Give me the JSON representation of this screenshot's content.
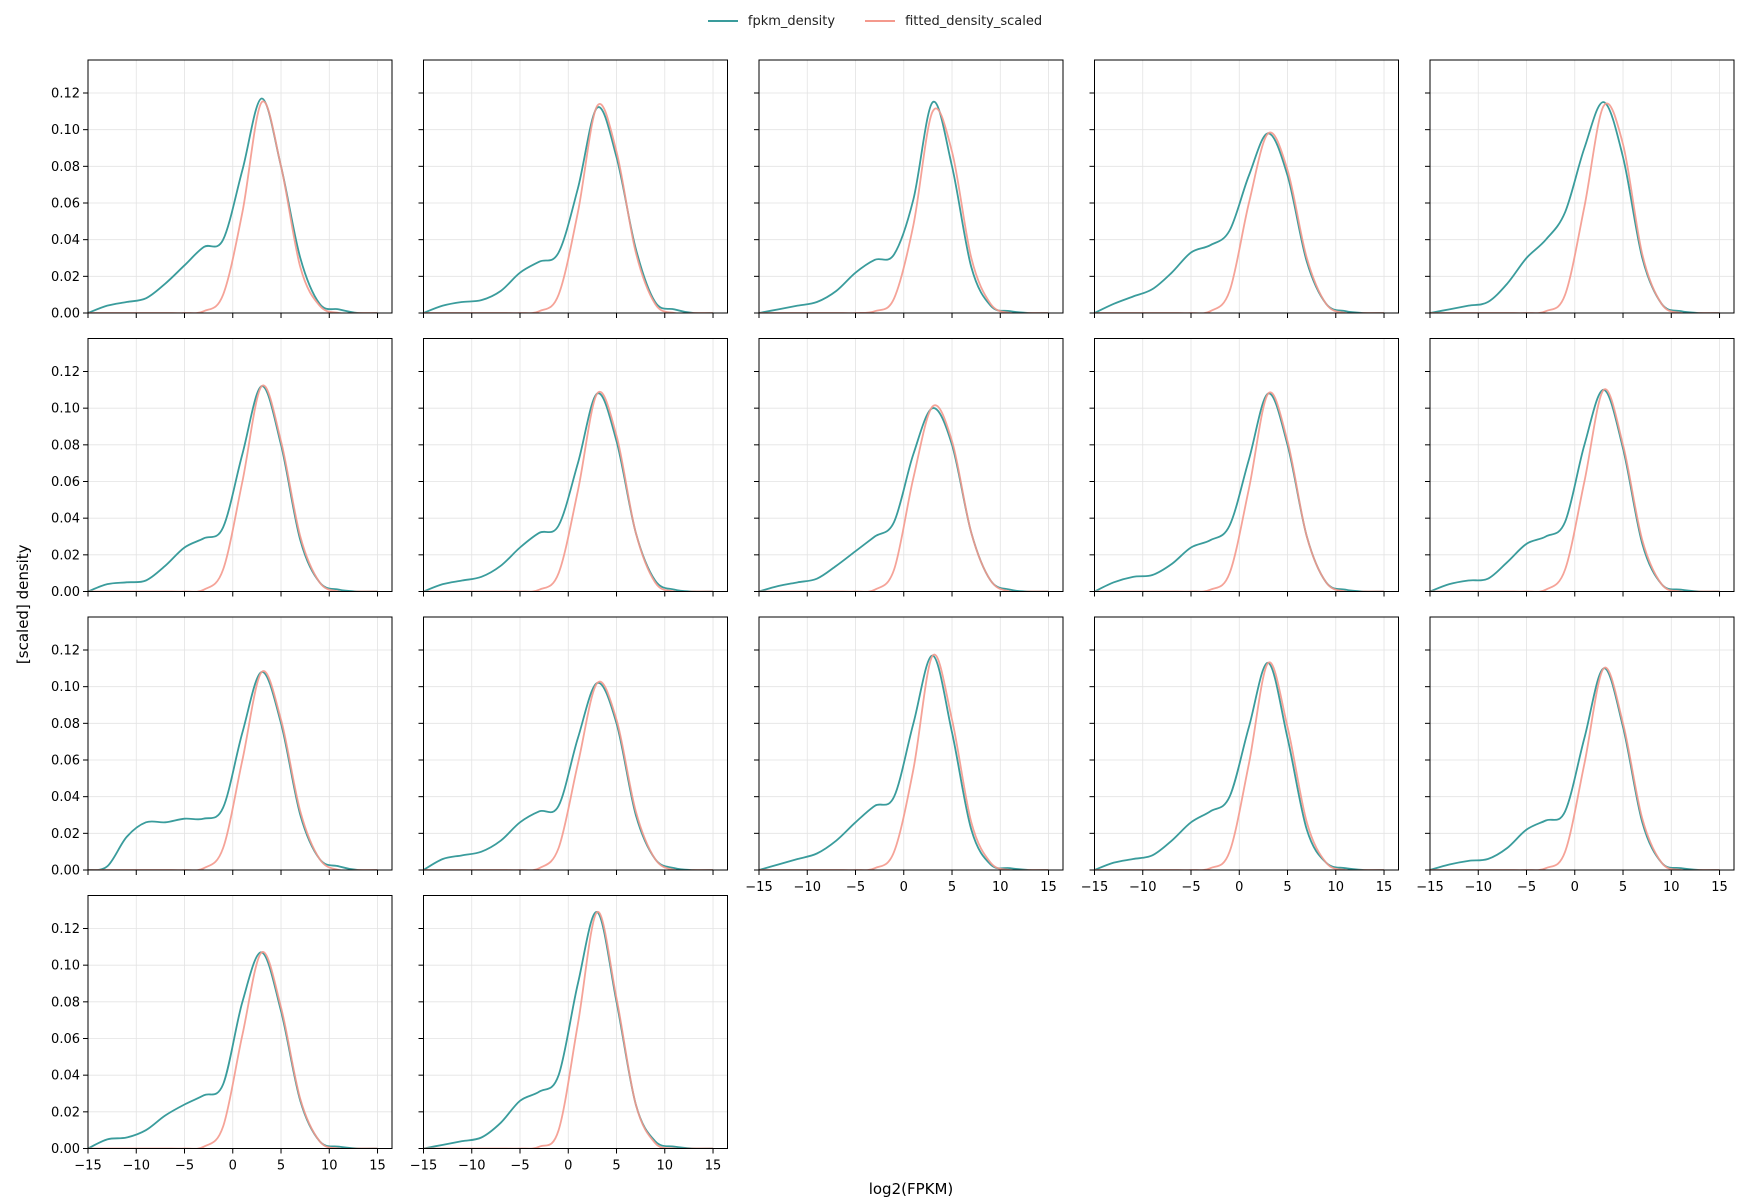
{
  "legend": {
    "series_a": "fpkm_density",
    "series_b": "fitted_density_scaled"
  },
  "colors": {
    "fpkm_density": "#3a9c9c",
    "fitted_density_scaled": "#f4998d",
    "grid": "#e3e3e3",
    "axis": "#000000"
  },
  "chart_data": {
    "type": "line",
    "layout": "small-multiples grid, 4 rows x 5 columns, 17 panels, shared axes",
    "xlabel": "log2(FPKM)",
    "ylabel": "[scaled] density",
    "xlim": [
      -15,
      16.5
    ],
    "ylim": [
      0,
      0.138
    ],
    "xticks": [
      -15,
      -10,
      -5,
      0,
      5,
      10,
      15
    ],
    "yticks": [
      0.0,
      0.02,
      0.04,
      0.06,
      0.08,
      0.1,
      0.12
    ],
    "xtick_labels": [
      "−15",
      "−10",
      "−5",
      "0",
      "5",
      "10",
      "15"
    ],
    "ytick_labels": [
      "0.00",
      "0.02",
      "0.04",
      "0.06",
      "0.08",
      "0.10",
      "0.12"
    ],
    "grid": true,
    "legend_position": "top-center",
    "x_curve_grid": [
      -15,
      -13,
      -11,
      -9,
      -7,
      -5,
      -3,
      -1,
      1,
      3,
      5,
      7,
      9,
      11,
      13,
      15
    ],
    "panels": [
      {
        "fpkm": [
          0.0,
          0.004,
          0.006,
          0.008,
          0.016,
          0.026,
          0.036,
          0.04,
          0.078,
          0.117,
          0.08,
          0.03,
          0.005,
          0.002,
          0.0,
          0.0
        ],
        "fitted": [
          0.0,
          0.0,
          0.0,
          0.0,
          0.0,
          0.0,
          0.001,
          0.01,
          0.055,
          0.115,
          0.08,
          0.025,
          0.004,
          0.0,
          0.0,
          0.0
        ]
      },
      {
        "fpkm": [
          0.0,
          0.004,
          0.006,
          0.007,
          0.012,
          0.022,
          0.028,
          0.033,
          0.068,
          0.112,
          0.085,
          0.035,
          0.006,
          0.002,
          0.0,
          0.0
        ],
        "fitted": [
          0.0,
          0.0,
          0.0,
          0.0,
          0.0,
          0.0,
          0.001,
          0.01,
          0.055,
          0.113,
          0.088,
          0.033,
          0.005,
          0.0,
          0.0,
          0.0
        ]
      },
      {
        "fpkm": [
          0.0,
          0.002,
          0.004,
          0.006,
          0.012,
          0.022,
          0.029,
          0.032,
          0.062,
          0.115,
          0.08,
          0.025,
          0.004,
          0.001,
          0.0,
          0.0
        ],
        "fitted": [
          0.0,
          0.0,
          0.0,
          0.0,
          0.0,
          0.0,
          0.001,
          0.008,
          0.048,
          0.11,
          0.088,
          0.03,
          0.005,
          0.0,
          0.0,
          0.0
        ]
      },
      {
        "fpkm": [
          0.0,
          0.005,
          0.009,
          0.013,
          0.022,
          0.033,
          0.037,
          0.045,
          0.075,
          0.098,
          0.075,
          0.028,
          0.005,
          0.001,
          0.0,
          0.0
        ],
        "fitted": [
          0.0,
          0.0,
          0.0,
          0.0,
          0.0,
          0.0,
          0.001,
          0.012,
          0.06,
          0.098,
          0.078,
          0.03,
          0.005,
          0.0,
          0.0,
          0.0
        ]
      },
      {
        "fpkm": [
          0.0,
          0.002,
          0.004,
          0.006,
          0.016,
          0.03,
          0.04,
          0.055,
          0.09,
          0.115,
          0.085,
          0.03,
          0.005,
          0.001,
          0.0,
          0.0
        ],
        "fitted": [
          0.0,
          0.0,
          0.0,
          0.0,
          0.0,
          0.0,
          0.001,
          0.01,
          0.058,
          0.113,
          0.092,
          0.032,
          0.005,
          0.0,
          0.0,
          0.0
        ]
      },
      {
        "fpkm": [
          0.0,
          0.004,
          0.005,
          0.006,
          0.014,
          0.024,
          0.029,
          0.035,
          0.075,
          0.112,
          0.08,
          0.028,
          0.005,
          0.001,
          0.0,
          0.0
        ],
        "fitted": [
          0.0,
          0.0,
          0.0,
          0.0,
          0.0,
          0.0,
          0.001,
          0.012,
          0.06,
          0.112,
          0.082,
          0.03,
          0.005,
          0.0,
          0.0,
          0.0
        ]
      },
      {
        "fpkm": [
          0.0,
          0.004,
          0.006,
          0.008,
          0.014,
          0.024,
          0.032,
          0.036,
          0.07,
          0.108,
          0.082,
          0.032,
          0.006,
          0.001,
          0.0,
          0.0
        ],
        "fitted": [
          0.0,
          0.0,
          0.0,
          0.0,
          0.0,
          0.0,
          0.001,
          0.01,
          0.055,
          0.108,
          0.085,
          0.032,
          0.005,
          0.0,
          0.0,
          0.0
        ]
      },
      {
        "fpkm": [
          0.0,
          0.003,
          0.005,
          0.007,
          0.014,
          0.022,
          0.03,
          0.038,
          0.075,
          0.1,
          0.08,
          0.032,
          0.006,
          0.001,
          0.0,
          0.0
        ],
        "fitted": [
          0.0,
          0.0,
          0.0,
          0.0,
          0.0,
          0.0,
          0.001,
          0.012,
          0.062,
          0.101,
          0.082,
          0.032,
          0.006,
          0.0,
          0.0,
          0.0
        ]
      },
      {
        "fpkm": [
          0.0,
          0.005,
          0.008,
          0.009,
          0.015,
          0.024,
          0.028,
          0.036,
          0.072,
          0.108,
          0.08,
          0.03,
          0.005,
          0.001,
          0.0,
          0.0
        ],
        "fitted": [
          0.0,
          0.0,
          0.0,
          0.0,
          0.0,
          0.0,
          0.001,
          0.01,
          0.056,
          0.108,
          0.082,
          0.03,
          0.005,
          0.0,
          0.0,
          0.0
        ]
      },
      {
        "fpkm": [
          0.0,
          0.004,
          0.006,
          0.007,
          0.016,
          0.026,
          0.03,
          0.038,
          0.08,
          0.11,
          0.078,
          0.026,
          0.004,
          0.001,
          0.0,
          0.0
        ],
        "fitted": [
          0.0,
          0.0,
          0.0,
          0.0,
          0.0,
          0.0,
          0.001,
          0.012,
          0.06,
          0.11,
          0.08,
          0.028,
          0.004,
          0.0,
          0.0,
          0.0
        ]
      },
      {
        "fpkm": [
          0.0,
          0.002,
          0.018,
          0.026,
          0.026,
          0.028,
          0.028,
          0.034,
          0.075,
          0.108,
          0.08,
          0.03,
          0.006,
          0.002,
          0.0,
          0.0
        ],
        "fitted": [
          0.0,
          0.0,
          0.0,
          0.0,
          0.0,
          0.0,
          0.001,
          0.012,
          0.06,
          0.108,
          0.082,
          0.032,
          0.006,
          0.0,
          0.0,
          0.0
        ]
      },
      {
        "fpkm": [
          0.0,
          0.006,
          0.008,
          0.01,
          0.016,
          0.026,
          0.032,
          0.035,
          0.072,
          0.102,
          0.08,
          0.03,
          0.006,
          0.001,
          0.0,
          0.0
        ],
        "fitted": [
          0.0,
          0.0,
          0.0,
          0.0,
          0.0,
          0.0,
          0.001,
          0.012,
          0.058,
          0.102,
          0.082,
          0.032,
          0.006,
          0.0,
          0.0,
          0.0
        ]
      },
      {
        "fpkm": [
          0.0,
          0.003,
          0.006,
          0.009,
          0.016,
          0.026,
          0.035,
          0.04,
          0.08,
          0.117,
          0.075,
          0.022,
          0.003,
          0.001,
          0.0,
          0.0
        ],
        "fitted": [
          0.0,
          0.0,
          0.0,
          0.0,
          0.0,
          0.0,
          0.001,
          0.01,
          0.055,
          0.117,
          0.082,
          0.026,
          0.004,
          0.0,
          0.0,
          0.0
        ]
      },
      {
        "fpkm": [
          0.0,
          0.004,
          0.006,
          0.008,
          0.016,
          0.026,
          0.032,
          0.04,
          0.078,
          0.113,
          0.072,
          0.022,
          0.004,
          0.001,
          0.0,
          0.0
        ],
        "fitted": [
          0.0,
          0.0,
          0.0,
          0.0,
          0.0,
          0.0,
          0.001,
          0.01,
          0.058,
          0.113,
          0.078,
          0.026,
          0.004,
          0.0,
          0.0,
          0.0
        ]
      },
      {
        "fpkm": [
          0.0,
          0.003,
          0.005,
          0.006,
          0.012,
          0.022,
          0.027,
          0.032,
          0.072,
          0.11,
          0.078,
          0.026,
          0.004,
          0.001,
          0.0,
          0.0
        ],
        "fitted": [
          0.0,
          0.0,
          0.0,
          0.0,
          0.0,
          0.0,
          0.001,
          0.01,
          0.058,
          0.11,
          0.08,
          0.028,
          0.004,
          0.0,
          0.0,
          0.0
        ]
      },
      {
        "fpkm": [
          0.0,
          0.005,
          0.006,
          0.01,
          0.018,
          0.024,
          0.029,
          0.035,
          0.08,
          0.107,
          0.075,
          0.026,
          0.004,
          0.001,
          0.0,
          0.0
        ],
        "fitted": [
          0.0,
          0.0,
          0.0,
          0.0,
          0.0,
          0.0,
          0.001,
          0.012,
          0.062,
          0.107,
          0.077,
          0.027,
          0.004,
          0.0,
          0.0,
          0.0
        ]
      },
      {
        "fpkm": [
          0.0,
          0.002,
          0.004,
          0.006,
          0.014,
          0.026,
          0.031,
          0.04,
          0.09,
          0.129,
          0.08,
          0.024,
          0.004,
          0.001,
          0.0,
          0.0
        ],
        "fitted": [
          0.0,
          0.0,
          0.0,
          0.0,
          0.0,
          0.0,
          0.001,
          0.01,
          0.068,
          0.129,
          0.082,
          0.024,
          0.003,
          0.0,
          0.0,
          0.0
        ]
      }
    ]
  }
}
